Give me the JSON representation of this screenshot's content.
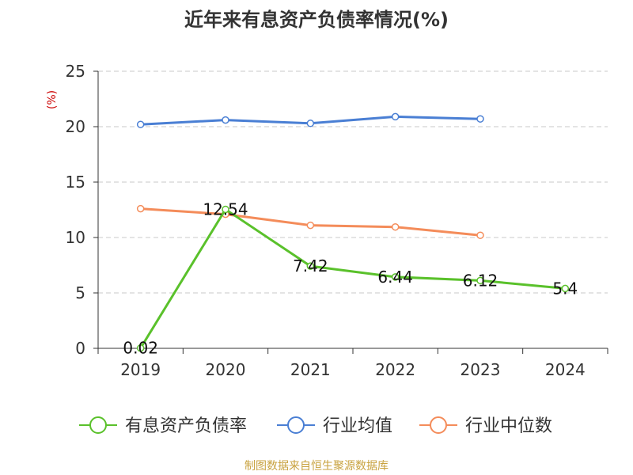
{
  "chart_data": {
    "type": "line",
    "title": "近年来有息资产负债率情况(%)",
    "ylabel": "(%)",
    "categories": [
      "2019",
      "2020",
      "2021",
      "2022",
      "2023",
      "2024"
    ],
    "ylim": [
      0,
      25
    ],
    "yticks": [
      0,
      5,
      10,
      15,
      20,
      25
    ],
    "grid": true,
    "legend_position": "bottom",
    "series": [
      {
        "name": "有息资产负债率",
        "color": "#5ac12b",
        "values": [
          0.02,
          12.54,
          7.42,
          6.44,
          6.12,
          5.4
        ],
        "labels": [
          "0.02",
          "12.54",
          "7.42",
          "6.44",
          "6.12",
          "5.4"
        ]
      },
      {
        "name": "行业均值",
        "color": "#4a7fd4",
        "values": [
          20.2,
          20.6,
          20.3,
          20.9,
          20.7,
          null
        ]
      },
      {
        "name": "行业中位数",
        "color": "#f48c5a",
        "values": [
          12.6,
          12.1,
          11.1,
          10.95,
          10.2,
          null
        ]
      }
    ]
  },
  "footer": {
    "source": "制图数据来自恒生聚源数据库"
  }
}
